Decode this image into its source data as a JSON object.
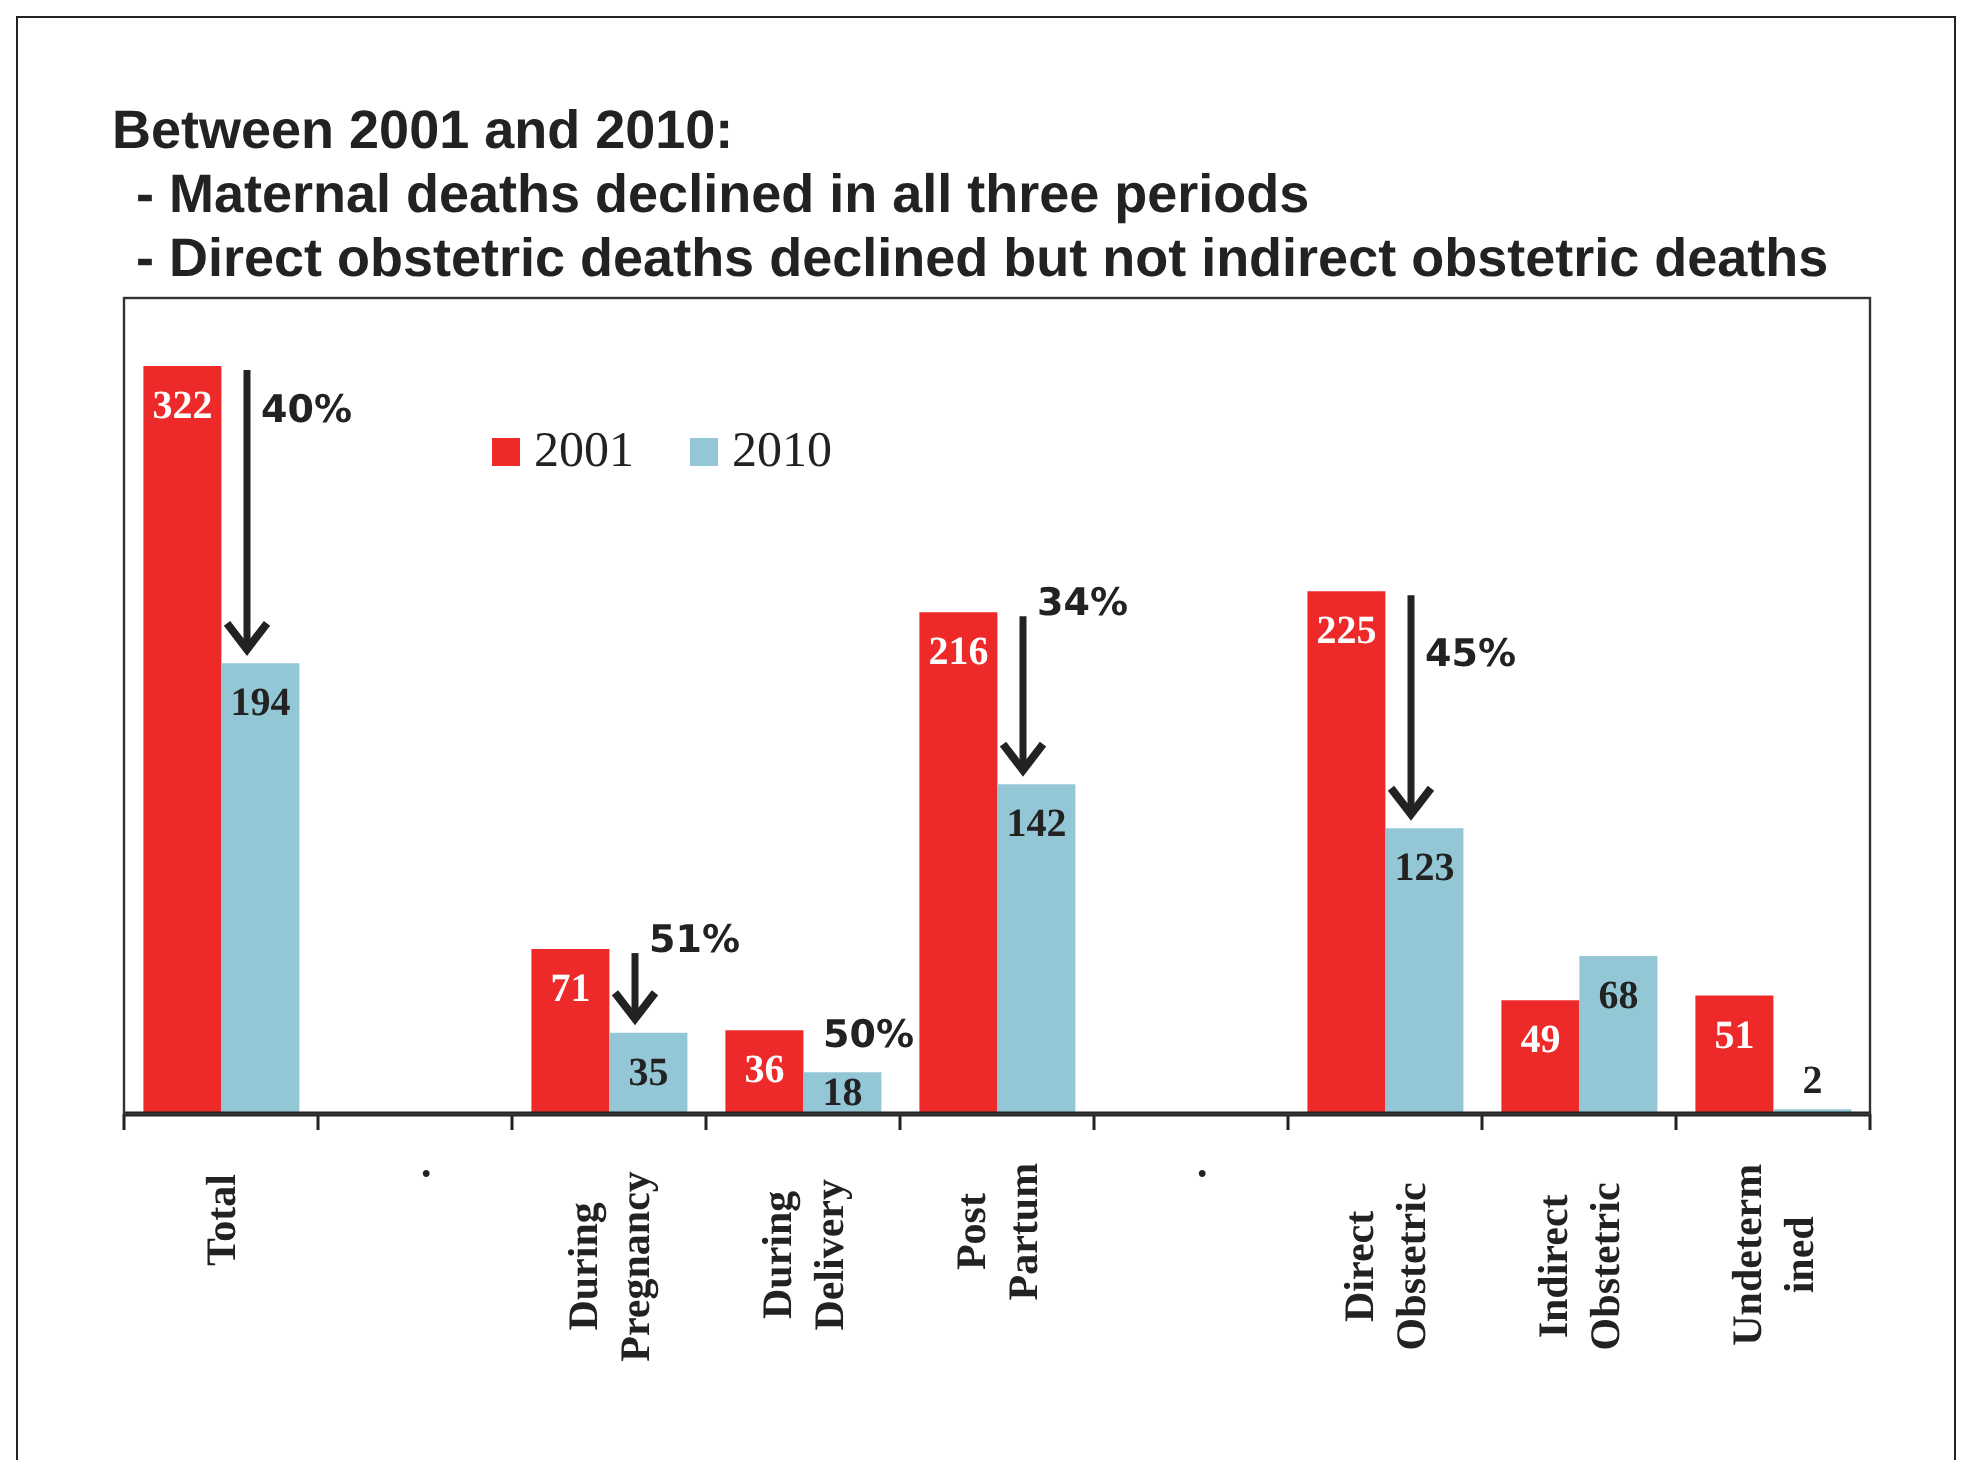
{
  "chart_data": {
    "type": "bar",
    "title": "Between 2001 and 2010:",
    "subtitle": "- Maternal deaths declined in all three periods\n- Direct obstetric deaths declined but not indirect obstetric deaths",
    "categories": [
      "Total",
      ".",
      "During Pregnancy",
      "During Delivery",
      "Post Partum",
      ".",
      "Direct Obstetric",
      "Indirect Obstetric",
      "Undeterm ined"
    ],
    "series": [
      {
        "name": "2001",
        "color": "#ed2a29",
        "values": [
          322,
          null,
          71,
          36,
          216,
          null,
          225,
          49,
          51
        ]
      },
      {
        "name": "2010",
        "color": "#93c7d5",
        "values": [
          194,
          null,
          35,
          18,
          142,
          null,
          123,
          68,
          2
        ]
      }
    ],
    "data_labels": true,
    "legend": "top left",
    "annotations": [
      {
        "text": "40%",
        "x": "Total",
        "y": 303
      },
      {
        "text": "51%",
        "x": "During Pregnancy",
        "y": 75
      },
      {
        "text": "50%",
        "x": "During Delivery",
        "y": 34
      },
      {
        "text": "34%",
        "x": "Post Partum",
        "y": 220
      },
      {
        "text": "45%",
        "x": "Direct Obstetric",
        "y": 198
      }
    ]
  }
}
